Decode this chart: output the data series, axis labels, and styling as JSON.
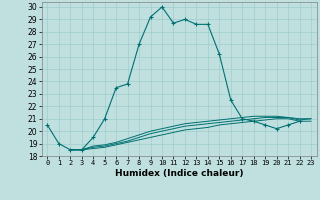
{
  "title": "",
  "xlabel": "Humidex (Indice chaleur)",
  "bg_color": "#c0e0e0",
  "grid_color": "#a0cccc",
  "line_color": "#007070",
  "xlim": [
    -0.5,
    23.5
  ],
  "ylim": [
    18,
    30.4
  ],
  "xticks": [
    0,
    1,
    2,
    3,
    4,
    5,
    6,
    7,
    8,
    9,
    10,
    11,
    12,
    13,
    14,
    15,
    16,
    17,
    18,
    19,
    20,
    21,
    22,
    23
  ],
  "yticks": [
    18,
    19,
    20,
    21,
    22,
    23,
    24,
    25,
    26,
    27,
    28,
    29,
    30
  ],
  "main_line_x": [
    0,
    1,
    2,
    3,
    4,
    5,
    6,
    7,
    8,
    9,
    10,
    11,
    12,
    13,
    14,
    15,
    16,
    17,
    18,
    19,
    20,
    21,
    22
  ],
  "main_line_y": [
    20.5,
    19.0,
    18.5,
    18.5,
    19.5,
    21.0,
    23.5,
    23.8,
    27.0,
    29.2,
    30.0,
    28.7,
    29.0,
    28.6,
    28.6,
    26.2,
    22.5,
    21.0,
    20.8,
    20.5,
    20.2,
    20.5,
    20.8
  ],
  "flat_lines": [
    {
      "x": [
        2,
        3,
        4,
        5,
        6,
        7,
        8,
        9,
        10,
        11,
        12,
        13,
        14,
        15,
        16,
        17,
        18,
        19,
        20,
        21,
        22,
        23
      ],
      "y": [
        18.5,
        18.5,
        18.6,
        18.7,
        18.9,
        19.1,
        19.3,
        19.5,
        19.7,
        19.9,
        20.1,
        20.2,
        20.3,
        20.5,
        20.6,
        20.7,
        20.8,
        20.9,
        21.0,
        21.0,
        20.8,
        20.8
      ]
    },
    {
      "x": [
        2,
        3,
        4,
        5,
        6,
        7,
        8,
        9,
        10,
        11,
        12,
        13,
        14,
        15,
        16,
        17,
        18,
        19,
        20,
        21,
        22,
        23
      ],
      "y": [
        18.5,
        18.5,
        18.7,
        18.8,
        19.0,
        19.2,
        19.5,
        19.8,
        20.0,
        20.2,
        20.4,
        20.5,
        20.6,
        20.7,
        20.8,
        20.9,
        21.0,
        21.1,
        21.1,
        21.1,
        20.9,
        21.0
      ]
    },
    {
      "x": [
        2,
        3,
        4,
        5,
        6,
        7,
        8,
        9,
        10,
        11,
        12,
        13,
        14,
        15,
        16,
        17,
        18,
        19,
        20,
        21,
        22,
        23
      ],
      "y": [
        18.5,
        18.5,
        18.8,
        18.9,
        19.1,
        19.4,
        19.7,
        20.0,
        20.2,
        20.4,
        20.6,
        20.7,
        20.8,
        20.9,
        21.0,
        21.1,
        21.2,
        21.2,
        21.2,
        21.1,
        21.0,
        21.0
      ]
    }
  ]
}
